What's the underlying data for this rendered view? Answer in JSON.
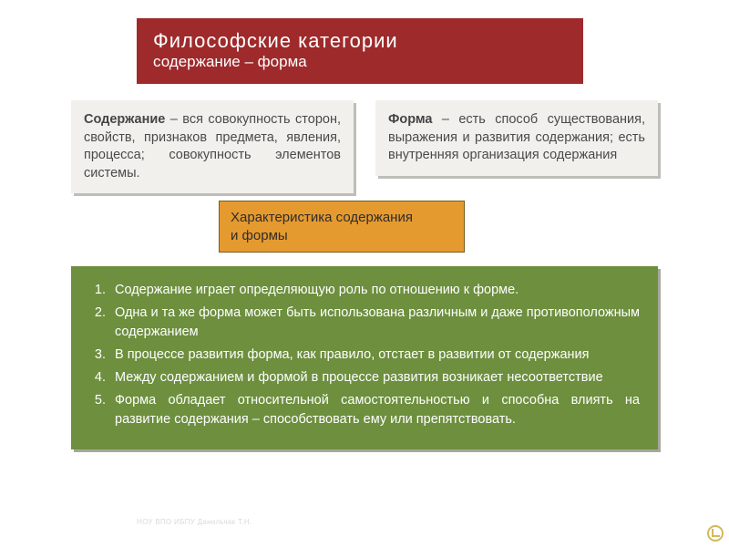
{
  "header": {
    "title": "Философские  категории",
    "subtitle": "содержание – форма",
    "bg_color": "#9e2a2b",
    "text_color": "#ffffff",
    "title_fontsize": 22,
    "sub_fontsize": 17
  },
  "definitions": {
    "left": {
      "term": "Содержание",
      "text": " – вся совокупность сторон, свойств, признаков предмета, явления, процесса; совокупность элементов системы."
    },
    "right": {
      "term": "Форма",
      "text": " – есть способ существования, выражения и развития содержания; есть внутренняя организация содержания"
    },
    "bg_color": "#f2f0ed",
    "shadow_color": "#bfbdb8",
    "text_color": "#4a4a4a",
    "fontsize": 14.5
  },
  "characteristic": {
    "line1": "Характеристика содержания",
    "line2": "и формы",
    "bg_color": "#e59a2f",
    "border_color": "#7a5c1a",
    "text_color": "#2d2d2d",
    "fontsize": 15
  },
  "list": {
    "items": [
      "Содержание играет определяющую роль по отношению к  форме.",
      "Одна и та же форма может быть использована различным и даже противоположным содержанием",
      "В процессе развития форма, как правило, отстает в развитии от содержания",
      "Между содержанием и формой в процессе развития возникает несоответствие",
      "Форма обладает относительной самостоятельностью и способна влиять на развитие содержания – способствовать ему или препятствовать."
    ],
    "bg_color": "#6d8f3e",
    "shadow_color": "#a8a6a0",
    "text_color": "#ffffff",
    "fontsize": 14.5
  },
  "watermark": "НОУ ВПО ИБПУ   Данильчак Т.Н.",
  "colors": {
    "page_bg": "#ffffff",
    "corner_icon": "#d4b957"
  }
}
